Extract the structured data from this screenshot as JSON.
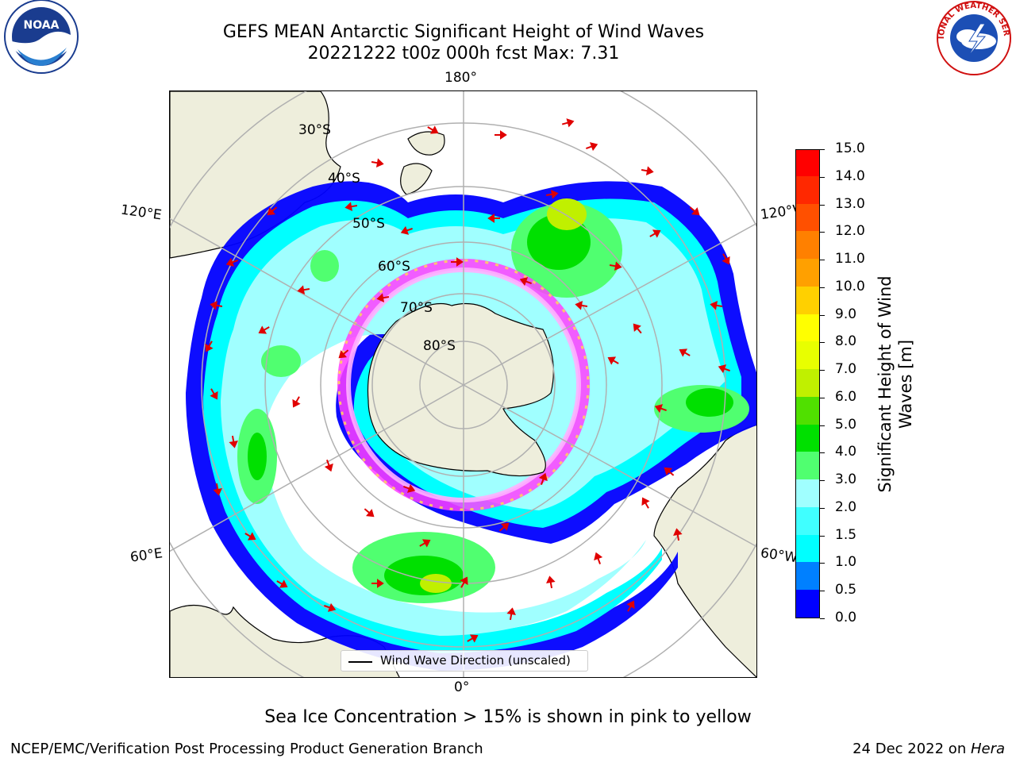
{
  "title": {
    "line1": "GEFS MEAN Antarctic Significant Height of Wind Waves",
    "line2": "20221222 t00z 000h fcst   Max: 7.31"
  },
  "map": {
    "projection": "south polar stereographic",
    "lon_labels": {
      "top": "180°",
      "bottom": "0°",
      "upper_left": "120°E",
      "upper_right": "120°W",
      "lower_left": "60°E",
      "lower_right": "60°W"
    },
    "lat_labels": [
      "30°S",
      "40°S",
      "50°S",
      "60°S",
      "70°S",
      "80°S"
    ],
    "colors": {
      "land": "#eeeedc",
      "ocean_missing": "#ffffff",
      "gridline": "#b0b0b0",
      "arrow": "#e00000"
    }
  },
  "legend": {
    "label": "Wind Wave Direction (unscaled)"
  },
  "colorbar": {
    "title": "Significant Height of Wind Waves [m]",
    "tick_labels": [
      "0.0",
      "0.5",
      "1.0",
      "1.5",
      "2.0",
      "3.0",
      "4.0",
      "5.0",
      "6.0",
      "7.0",
      "8.0",
      "9.0",
      "10.0",
      "11.0",
      "12.0",
      "13.0",
      "14.0",
      "15.0"
    ],
    "colors": [
      "#0000ff",
      "#0080ff",
      "#00ffff",
      "#40ffff",
      "#a0ffff",
      "#50ff70",
      "#00e000",
      "#50e000",
      "#c0f000",
      "#e8ff00",
      "#ffff00",
      "#ffd000",
      "#ffa000",
      "#ff8000",
      "#ff5000",
      "#ff2800",
      "#ff0000"
    ]
  },
  "notes": {
    "sea_ice": "Sea Ice Concentration > 15% is shown in pink to yellow"
  },
  "footer": {
    "left": "NCEP/EMC/Verification Post Processing Product Generation Branch",
    "right_prefix": "24 Dec 2022 on ",
    "right_system": "Hera"
  },
  "logos": {
    "left": "noaa-logo",
    "right": "national-weather-service-logo",
    "left_text": "NOAA",
    "right_text": "NATIONAL WEATHER SERVICE"
  }
}
